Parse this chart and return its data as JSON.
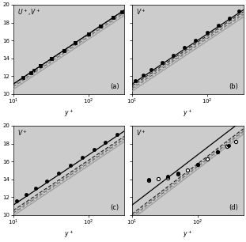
{
  "panels": [
    "(a)",
    "(b)",
    "(c)",
    "(d)"
  ],
  "panel_ylabels": [
    "$U^+, V^+$",
    "$V^+$",
    "$V^+$",
    "$V^+$"
  ],
  "xlabel": "$y^+$",
  "xlim": [
    10,
    300
  ],
  "xlim_d": [
    10,
    500
  ],
  "ylim": [
    10,
    20
  ],
  "yticks": [
    10,
    12,
    14,
    16,
    18,
    20
  ],
  "xticks_abc": [
    10,
    100
  ],
  "xticks_d": [
    10,
    100
  ],
  "bg_color": "#cccccc",
  "kappa": 0.41,
  "B_unladen": 5.5,
  "B_present_a": 5.5,
  "B_present_b": 5.3,
  "B_present_c": 4.9,
  "B_present_d": 4.5,
  "B_iso_a": 5.2,
  "B_iso_b": 5.0,
  "B_iso_c": 4.6,
  "B_iso_d": 4.2,
  "B_berl_a": 4.9,
  "B_berl_b": 4.7,
  "B_berl_c": 4.3,
  "B_berl_d": 3.9,
  "exp_gas_x": [
    13.5,
    17,
    23,
    32,
    47,
    67,
    100,
    145,
    210,
    275
  ],
  "exp_20_x": [
    19,
    23,
    32,
    47,
    67,
    100,
    145,
    210
  ],
  "exp_30_x": [
    11,
    14,
    18,
    25,
    35,
    50,
    70,
    100,
    140,
    195,
    265
  ],
  "exp_60_x": [
    11,
    15,
    20,
    28,
    40,
    57,
    82,
    118,
    165,
    240
  ],
  "exp_100_x": [
    18,
    25,
    35,
    50,
    70,
    100,
    140,
    200,
    280,
    380
  ],
  "exp_100_y": [
    13.85,
    14.05,
    14.2,
    14.6,
    15.05,
    15.65,
    16.3,
    17.05,
    17.7,
    18.2
  ]
}
